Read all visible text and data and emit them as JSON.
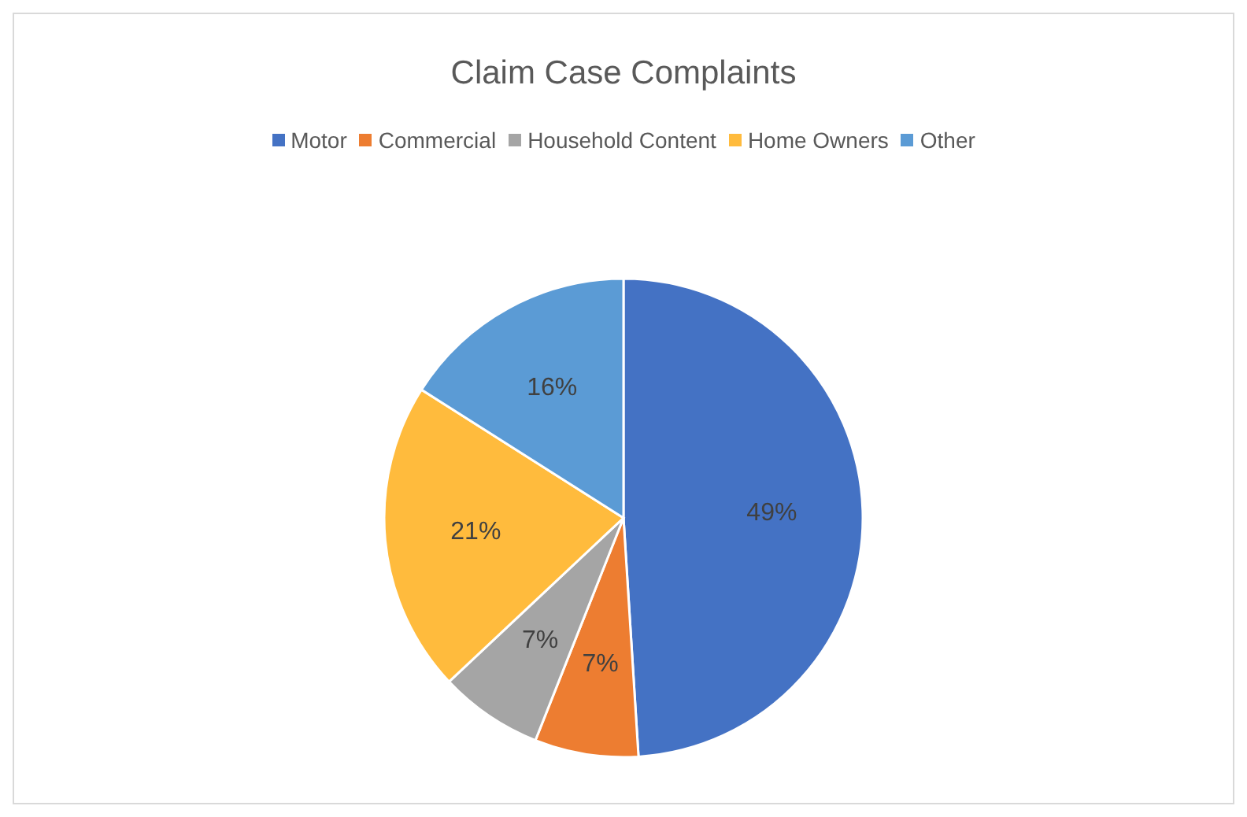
{
  "chart_data": {
    "type": "pie",
    "title": "Claim Case Complaints",
    "categories": [
      "Motor",
      "Commercial",
      "Household Content",
      "Home Owners",
      "Other"
    ],
    "values": [
      49,
      7,
      7,
      21,
      16
    ],
    "colors": [
      "#4472c4",
      "#ed7d31",
      "#a5a5a5",
      "#ffbb3d",
      "#5b9bd5"
    ],
    "value_labels": [
      "49%",
      "7%",
      "7%",
      "21%",
      "16%"
    ],
    "legend": "top"
  }
}
